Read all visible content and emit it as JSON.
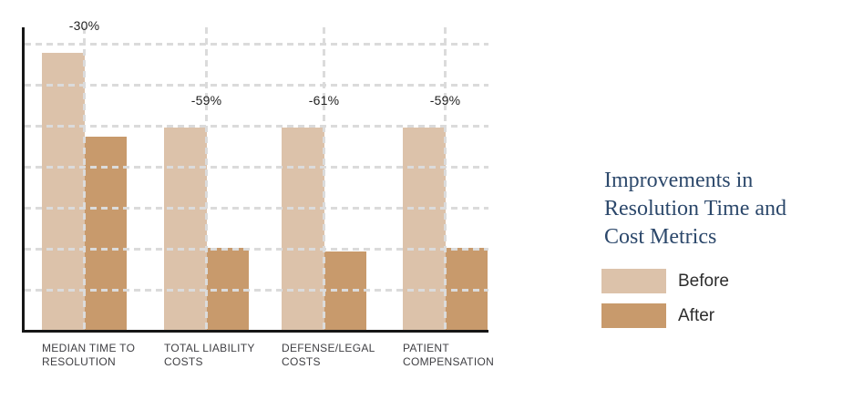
{
  "chart_data": {
    "type": "bar",
    "title": "Improvements in Resolution Time and Cost Metrics",
    "categories": [
      "MEDIAN TIME TO\nRESOLUTION",
      "TOTAL LIABILITY\nCOSTS",
      "DEFENSE/LEGAL\nCOSTS",
      "PATIENT\nCOMPENSATION"
    ],
    "series": [
      {
        "name": "Before",
        "color": "#dcc2aa",
        "values": [
          100,
          73,
          73,
          73
        ]
      },
      {
        "name": "After",
        "color": "#c89a6c",
        "values": [
          70,
          30,
          28.5,
          30
        ]
      }
    ],
    "annotations": [
      "-30%",
      "-59%",
      "-61%",
      "-59%"
    ],
    "xlabel": "",
    "ylabel": "",
    "ylim": [
      0,
      109
    ],
    "gridlines": {
      "horizontal_count": 7,
      "style": "dashed",
      "color": "#dbdbdb",
      "vertical_at_category_centers": true
    },
    "axis_color": "#161616",
    "annotation_color": "#1f1f1f",
    "category_label_color": "#404044",
    "legend": {
      "position": "right-of-chart",
      "entries": [
        "Before",
        "After"
      ]
    }
  },
  "side_panel": {
    "title": "Improvements in Resolution Time and Cost Metrics",
    "title_color": "#2c486b"
  }
}
